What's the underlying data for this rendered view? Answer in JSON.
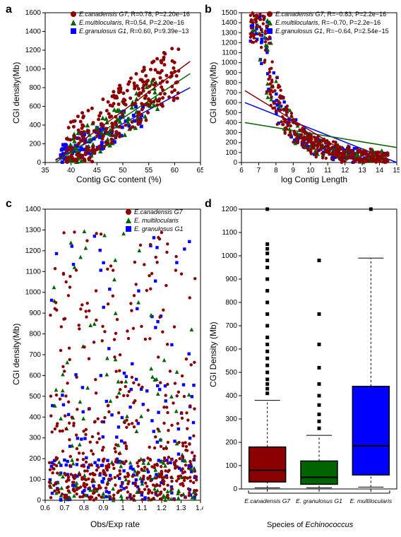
{
  "colors": {
    "canadensis": "#8b0000",
    "multilocularis": "#006400",
    "granulosus": "#0000ff",
    "multilocularis_box": "#0000ff",
    "granulosus_box": "#006400",
    "axis": "#000000",
    "background": "#ffffff"
  },
  "markers": {
    "canadensis": "circle",
    "multilocularis": "triangle",
    "granulosus": "square"
  },
  "panel_a": {
    "label": "a",
    "type": "scatter",
    "xlabel": "Contig GC content (%)",
    "ylabel": "CGI density(Mb)",
    "xlim": [
      35,
      65
    ],
    "ylim": [
      0,
      1600
    ],
    "xticks": [
      35,
      40,
      45,
      50,
      55,
      60,
      65
    ],
    "yticks": [
      0,
      200,
      400,
      600,
      800,
      1000,
      1200,
      1400,
      1600
    ],
    "legend": [
      {
        "key": "canadensis",
        "text_italic": "E.canadensis G7",
        "stats": ", R=0.78, P=2.20e−16"
      },
      {
        "key": "multilocularis",
        "text_italic": "E.multilocularis",
        "stats": ", R=0.54, P=2.20e−16"
      },
      {
        "key": "granulosus",
        "text_italic": "E.granulosus G1",
        "stats": ", R=0.60, P=9.39e−13"
      }
    ],
    "trend_lines": {
      "canadensis": {
        "x": [
          37,
          63
        ],
        "y": [
          20,
          1080
        ]
      },
      "multilocularis": {
        "x": [
          37,
          63
        ],
        "y": [
          0,
          950
        ]
      },
      "granulosus": {
        "x": [
          37,
          63
        ],
        "y": [
          30,
          800
        ]
      }
    }
  },
  "panel_b": {
    "label": "b",
    "type": "scatter",
    "xlabel": "log Contig Length",
    "ylabel": "CGI density(Mb)",
    "xlim": [
      6,
      15
    ],
    "ylim": [
      0,
      1500
    ],
    "xticks": [
      6,
      7,
      8,
      9,
      10,
      11,
      12,
      13,
      14,
      15
    ],
    "yticks": [
      0,
      100,
      200,
      300,
      400,
      500,
      600,
      700,
      800,
      900,
      1000,
      1100,
      1200,
      1300,
      1400,
      1500
    ],
    "legend": [
      {
        "key": "canadensis",
        "text_italic": "E.canadensis G7",
        "stats": ", R=−0.83, P=2.2e−16"
      },
      {
        "key": "multilocularis",
        "text_italic": "E.multilocularis",
        "stats": ", R=−0.70, P=2.2e−16"
      },
      {
        "key": "granulosus",
        "text_italic": "E.granulosus G1",
        "stats": ", R=−0.64, P=2.54e−15"
      }
    ],
    "trend_lines": {
      "canadensis": {
        "x": [
          6.2,
          13
        ],
        "y": [
          720,
          0
        ]
      },
      "multilocularis": {
        "x": [
          6.2,
          15
        ],
        "y": [
          400,
          150
        ]
      },
      "granulosus": {
        "x": [
          6.2,
          15
        ],
        "y": [
          600,
          0
        ]
      }
    }
  },
  "panel_c": {
    "label": "c",
    "type": "scatter",
    "xlabel": "Obs/Exp rate",
    "ylabel": "CGI density(Mb)",
    "xlim": [
      0.6,
      1.4
    ],
    "ylim": [
      0,
      1400
    ],
    "xticks": [
      0.6,
      0.7,
      0.8,
      0.9,
      1.0,
      1.1,
      1.2,
      1.3,
      1.4
    ],
    "yticks": [
      0,
      100,
      200,
      300,
      400,
      500,
      600,
      700,
      800,
      900,
      1000,
      1100,
      1200,
      1300,
      1400
    ],
    "legend": [
      {
        "key": "canadensis",
        "text_italic": "E.canadensis G7",
        "stats": ""
      },
      {
        "key": "multilocularis",
        "text_italic": "E. multilocularis",
        "stats": ""
      },
      {
        "key": "granulosus",
        "text_italic": "E. granulosus G1",
        "stats": ""
      }
    ]
  },
  "panel_d": {
    "label": "d",
    "type": "boxplot",
    "xlabel": "Species of Echinococcus",
    "xlabel_italic_word": "Echinococcus",
    "ylabel": "CGI Density (Mb)",
    "ylim": [
      0,
      1200
    ],
    "yticks": [
      0,
      100,
      200,
      300,
      400,
      500,
      600,
      700,
      800,
      900,
      1000,
      1100,
      1200
    ],
    "categories": [
      "E.canadensis G7",
      "E. granulosus G1",
      "E. multilocularis"
    ],
    "boxes": [
      {
        "fill": "#8b0000",
        "q1": 30,
        "median": 80,
        "q3": 180,
        "whisker_low": 5,
        "whisker_high": 380,
        "outliers": [
          410,
          430,
          450,
          470,
          500,
          530,
          560,
          590,
          620,
          650,
          700,
          750,
          800,
          850,
          900,
          950,
          980,
          1010,
          1030,
          1050,
          1200
        ]
      },
      {
        "fill": "#006400",
        "q1": 20,
        "median": 50,
        "q3": 120,
        "whisker_low": 5,
        "whisker_high": 230,
        "outliers": [
          260,
          290,
          320,
          360,
          400,
          450,
          520,
          620,
          750,
          980
        ]
      },
      {
        "fill": "#0000ff",
        "q1": 60,
        "median": 185,
        "q3": 440,
        "whisker_low": 8,
        "whisker_high": 990,
        "outliers": [
          1250
        ]
      }
    ]
  }
}
